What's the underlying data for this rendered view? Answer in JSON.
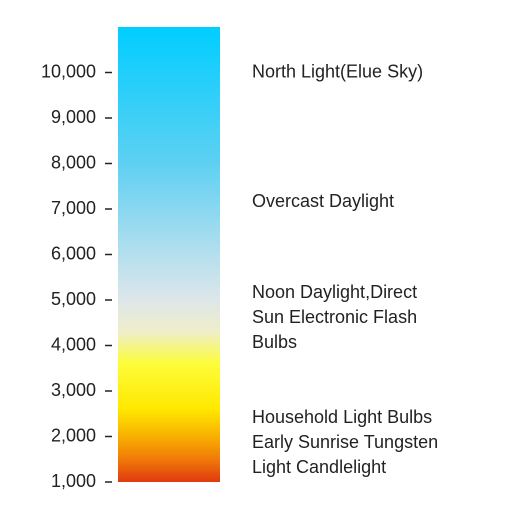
{
  "chart_data": {
    "type": "colorbar",
    "ylim": [
      1000,
      11000
    ],
    "yticks": [
      {
        "value": 1000,
        "label": "1,000"
      },
      {
        "value": 2000,
        "label": "2,000"
      },
      {
        "value": 3000,
        "label": "3,000"
      },
      {
        "value": 4000,
        "label": "4,000"
      },
      {
        "value": 5000,
        "label": "5,000"
      },
      {
        "value": 6000,
        "label": "6,000"
      },
      {
        "value": 7000,
        "label": "7,000"
      },
      {
        "value": 8000,
        "label": "8,000"
      },
      {
        "value": 9000,
        "label": "9,000"
      },
      {
        "value": 10000,
        "label": "10,000"
      }
    ],
    "gradient": [
      {
        "value": 11000,
        "color": "#00ceff"
      },
      {
        "value": 8000,
        "color": "#5ed0f2"
      },
      {
        "value": 6000,
        "color": "#b4dfee"
      },
      {
        "value": 5000,
        "color": "#dde6ea"
      },
      {
        "value": 4300,
        "color": "#efeeca"
      },
      {
        "value": 3600,
        "color": "#fdfd3a"
      },
      {
        "value": 2600,
        "color": "#ffe800"
      },
      {
        "value": 2000,
        "color": "#f8b000"
      },
      {
        "value": 1500,
        "color": "#f07a08"
      },
      {
        "value": 1000,
        "color": "#e03a10"
      }
    ],
    "annotations": [
      {
        "y": 10000,
        "lines": [
          "North Light(Elue Sky)"
        ]
      },
      {
        "y": 7150,
        "lines": [
          "Overcast Daylight"
        ]
      },
      {
        "y": 4600,
        "lines": [
          "Noon Daylight,Direct",
          "Sun Electronic Flash",
          "Bulbs"
        ]
      },
      {
        "y": 1850,
        "lines": [
          "Household Light Bulbs",
          "Early Sunrise Tungsten",
          "Light Candlelight"
        ]
      }
    ]
  }
}
